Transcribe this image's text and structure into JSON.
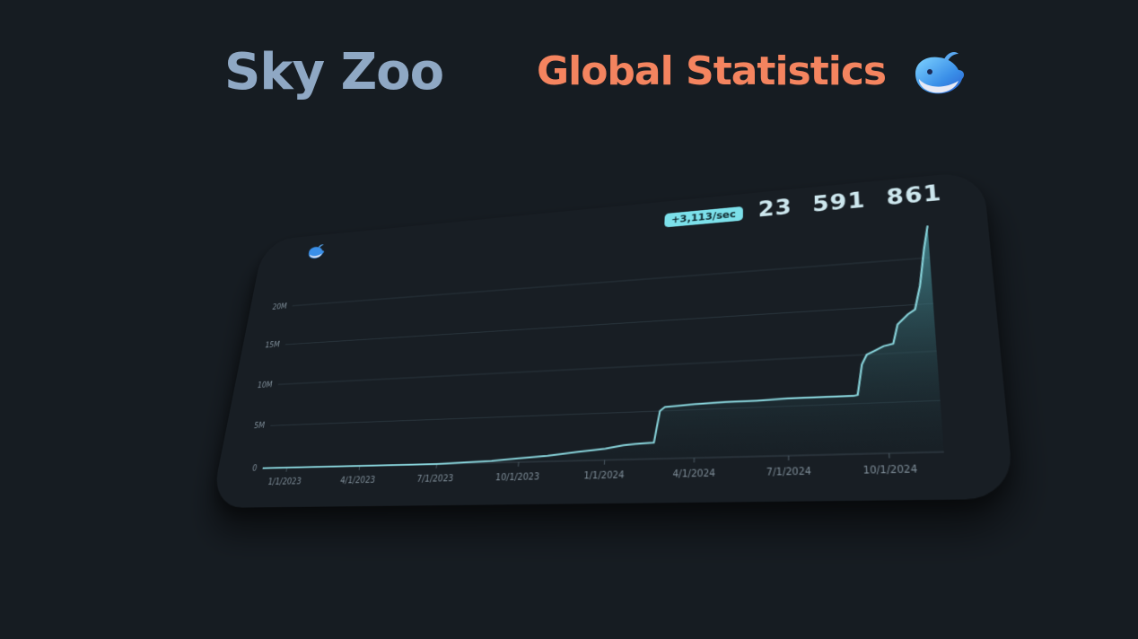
{
  "header": {
    "brand": "Sky Zoo",
    "title": "Global Statistics"
  },
  "stats": {
    "rate": "+3,113/sec",
    "counter": "23 591 861"
  },
  "icons": {
    "title_icon": "whale-icon",
    "card_icon": "whale-icon"
  },
  "colors": {
    "background": "#161c22",
    "card": "#181e24",
    "brand": "#8fa8c4",
    "title": "#f4845f",
    "accent": "#7ce0ea",
    "line": "#8ad7de"
  },
  "chart_data": {
    "type": "area",
    "x": [
      "2022-12-01",
      "2023-01-01",
      "2023-02-01",
      "2023-03-01",
      "2023-04-01",
      "2023-05-01",
      "2023-06-01",
      "2023-07-01",
      "2023-08-01",
      "2023-09-01",
      "2023-10-01",
      "2023-11-01",
      "2023-12-01",
      "2024-01-01",
      "2024-01-20",
      "2024-02-01",
      "2024-02-20",
      "2024-02-25",
      "2024-03-01",
      "2024-04-01",
      "2024-05-01",
      "2024-06-01",
      "2024-07-01",
      "2024-08-01",
      "2024-09-01",
      "2024-09-05",
      "2024-09-10",
      "2024-09-15",
      "2024-09-25",
      "2024-10-01",
      "2024-10-10",
      "2024-10-15",
      "2024-10-25",
      "2024-11-01",
      "2024-11-07",
      "2024-11-13",
      "2024-11-18"
    ],
    "series": [
      {
        "values": [
          0,
          0,
          0,
          0,
          0,
          0,
          0,
          0,
          100000,
          200000,
          400000,
          600000,
          900000,
          1200000,
          1500000,
          1600000,
          1700000,
          5000000,
          5400000,
          5600000,
          5700000,
          5700000,
          5800000,
          5800000,
          5800000,
          5900000,
          9000000,
          10000000,
          10500000,
          10800000,
          11000000,
          13000000,
          14000000,
          14500000,
          17000000,
          21000000,
          23600000
        ]
      }
    ],
    "x_ticks": [
      "1/1/2023",
      "4/1/2023",
      "7/1/2023",
      "10/1/2023",
      "1/1/2024",
      "4/1/2024",
      "7/1/2024",
      "10/1/2024"
    ],
    "y_ticks": [
      "0",
      "5M",
      "10M",
      "15M",
      "20M"
    ],
    "xlim": [
      "2022-12-01",
      "2024-11-18"
    ],
    "ylim": [
      0,
      24000000
    ],
    "grid": true,
    "title": "",
    "xlabel": "",
    "ylabel": ""
  }
}
